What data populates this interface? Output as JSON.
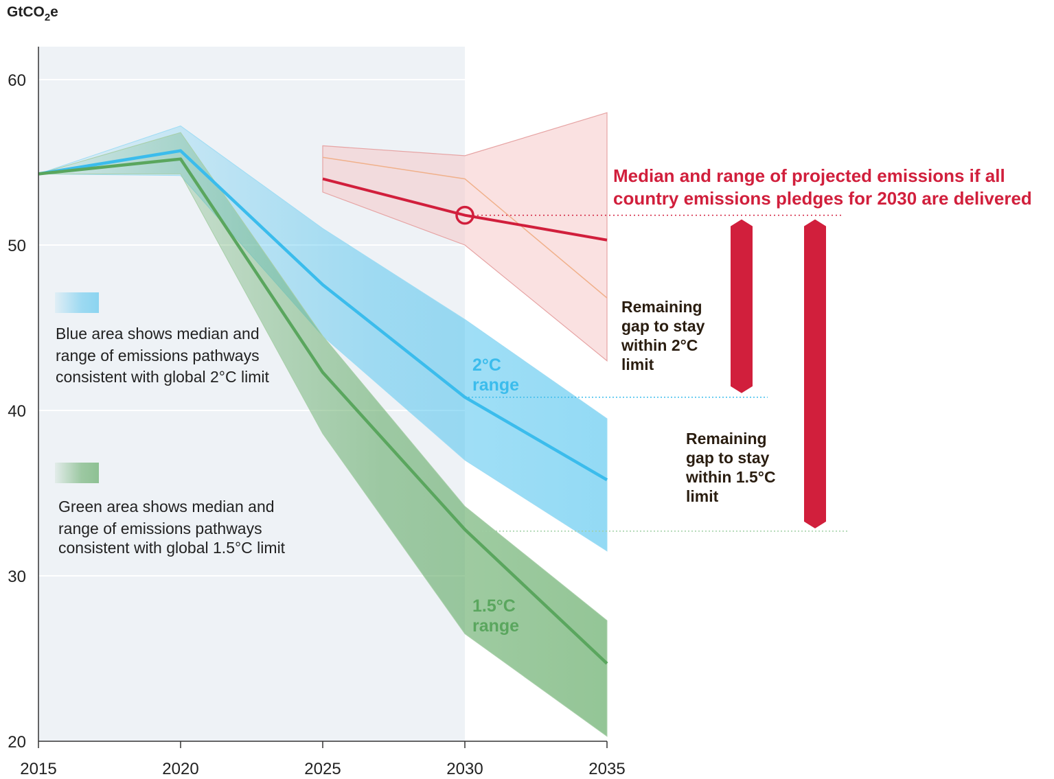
{
  "chart_data": {
    "type": "area",
    "ylabel_unit": "GtCO2e",
    "ylim": [
      20,
      62
    ],
    "xlim": [
      2015,
      2035
    ],
    "x_ticks": [
      2015,
      2020,
      2025,
      2030,
      2035
    ],
    "y_ticks": [
      20,
      30,
      40,
      50,
      60
    ],
    "x_tick_labels": [
      "2015",
      "2020",
      "2025",
      "2030",
      "2035"
    ],
    "y_tick_labels": [
      "20",
      "30",
      "40",
      "50",
      "60"
    ],
    "shaded_until": 2030,
    "series": [
      {
        "name": "2°C median",
        "color": "#3bbcec",
        "x": [
          2015,
          2020,
          2025,
          2030,
          2035
        ],
        "median": [
          54.3,
          55.7,
          47.6,
          40.8,
          35.8
        ],
        "low": [
          54.3,
          54.2,
          44.5,
          37.0,
          31.5
        ],
        "high": [
          54.3,
          57.2,
          51.0,
          45.5,
          39.5
        ]
      },
      {
        "name": "1.5°C median",
        "color": "#5aa65e",
        "x": [
          2015,
          2020,
          2025,
          2030,
          2035
        ],
        "median": [
          54.3,
          55.2,
          42.3,
          32.8,
          24.7
        ],
        "low": [
          54.3,
          54.3,
          38.6,
          26.5,
          20.3
        ],
        "high": [
          54.3,
          56.8,
          44.5,
          34.2,
          27.3
        ]
      },
      {
        "name": "Pledges median",
        "color": "#d11f3c",
        "x": [
          2025,
          2030,
          2035
        ],
        "median": [
          54.0,
          51.8,
          50.3
        ],
        "low": [
          53.2,
          50.0,
          43.0
        ],
        "high": [
          56.0,
          55.4,
          58.0
        ],
        "inner": [
          55.3,
          54.0,
          46.8
        ]
      }
    ],
    "marker": {
      "x": 2030,
      "y": 51.8
    },
    "reference_lines": [
      51.8,
      40.8,
      32.7
    ],
    "gaps": [
      {
        "label": "2°C",
        "from": 51.8,
        "to": 40.8
      },
      {
        "label": "1.5°C",
        "from": 51.8,
        "to": 32.7
      }
    ]
  },
  "texts": {
    "y_unit_main": "GtCO",
    "y_unit_sub": "2",
    "y_unit_end": "e",
    "legend_blue": [
      "Blue area shows median and",
      "range of emissions pathways",
      "consistent with global 2°C limit"
    ],
    "legend_green": [
      "Green area shows median and",
      "range of emissions pathways",
      "consistent with global 1.5°C limit"
    ],
    "pledges": [
      "Median and range of projected emissions if all",
      "country emissions pledges for 2030 are delivered"
    ],
    "gap_2c": [
      "Remaining",
      "gap to stay",
      "within 2°C",
      "limit"
    ],
    "gap_15c": [
      "Remaining",
      "gap to stay",
      "within 1.5°C",
      "limit"
    ],
    "range_2c": [
      "2°C",
      "range"
    ],
    "range_15c": [
      "1.5°C",
      "range"
    ]
  },
  "colors": {
    "shade": "#eef2f6",
    "blue": "#3bbcec",
    "green": "#5aa65e",
    "red": "#d11f3c",
    "grid": "#e2e6ea"
  }
}
